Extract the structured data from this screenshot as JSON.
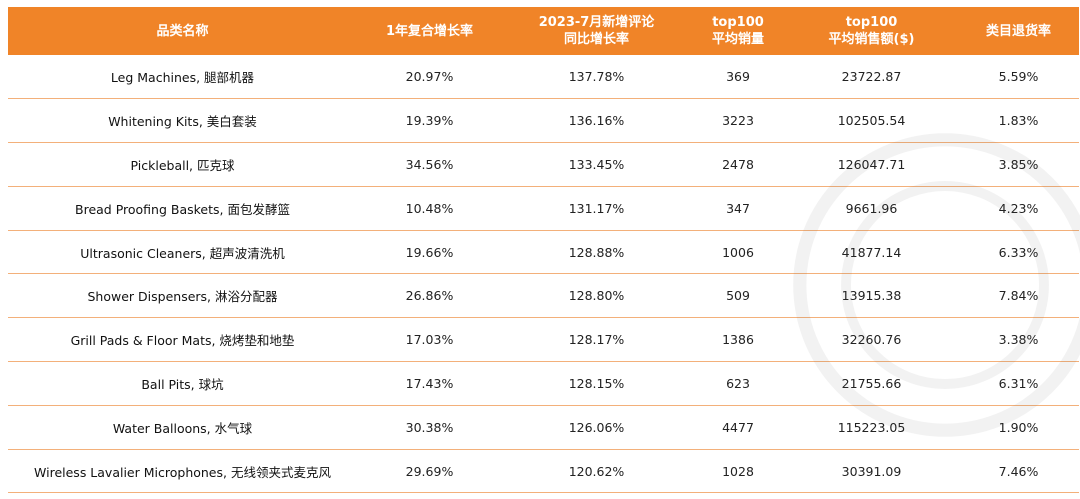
{
  "header": {
    "col_category": "品类名称",
    "col_cagr": "1年复合增长率",
    "col_reviews_line1": "2023-7月新增评论",
    "col_reviews_line2": "同比增长率",
    "col_top_sales_line1": "top100",
    "col_top_sales_line2": "平均销量",
    "col_top_revenue_line1": "top100",
    "col_top_revenue_line2": "平均销售额($)",
    "col_return_rate": "类目退货率"
  },
  "rows": [
    {
      "category": "Leg Machines, 腿部机器",
      "cagr": "20.97%",
      "review_growth": "137.78%",
      "avg_sales": "369",
      "avg_revenue": "23722.87",
      "return_rate": "5.59%"
    },
    {
      "category": "Whitening Kits, 美白套装",
      "cagr": "19.39%",
      "review_growth": "136.16%",
      "avg_sales": "3223",
      "avg_revenue": "102505.54",
      "return_rate": "1.83%"
    },
    {
      "category": "Pickleball, 匹克球",
      "cagr": "34.56%",
      "review_growth": "133.45%",
      "avg_sales": "2478",
      "avg_revenue": "126047.71",
      "return_rate": "3.85%"
    },
    {
      "category": "Bread Proofing Baskets, 面包发酵篮",
      "cagr": "10.48%",
      "review_growth": "131.17%",
      "avg_sales": "347",
      "avg_revenue": "9661.96",
      "return_rate": "4.23%"
    },
    {
      "category": "Ultrasonic Cleaners, 超声波清洗机",
      "cagr": "19.66%",
      "review_growth": "128.88%",
      "avg_sales": "1006",
      "avg_revenue": "41877.14",
      "return_rate": "6.33%"
    },
    {
      "category": "Shower Dispensers, 淋浴分配器",
      "cagr": "26.86%",
      "review_growth": "128.80%",
      "avg_sales": "509",
      "avg_revenue": "13915.38",
      "return_rate": "7.84%"
    },
    {
      "category": "Grill Pads & Floor Mats, 烧烤垫和地垫",
      "cagr": "17.03%",
      "review_growth": "128.17%",
      "avg_sales": "1386",
      "avg_revenue": "32260.76",
      "return_rate": "3.38%"
    },
    {
      "category": "Ball Pits, 球坑",
      "cagr": "17.43%",
      "review_growth": "128.15%",
      "avg_sales": "623",
      "avg_revenue": "21755.66",
      "return_rate": "6.31%"
    },
    {
      "category": "Water Balloons, 水气球",
      "cagr": "30.38%",
      "review_growth": "126.06%",
      "avg_sales": "4477",
      "avg_revenue": "115223.05",
      "return_rate": "1.90%"
    },
    {
      "category": "Wireless Lavalier Microphones, 无线领夹式麦克风",
      "cagr": "29.69%",
      "review_growth": "120.62%",
      "avg_sales": "1028",
      "avg_revenue": "30391.09",
      "return_rate": "7.46%"
    }
  ],
  "colors": {
    "header_bg": "#f08428",
    "row_border": "#f3b07a"
  }
}
